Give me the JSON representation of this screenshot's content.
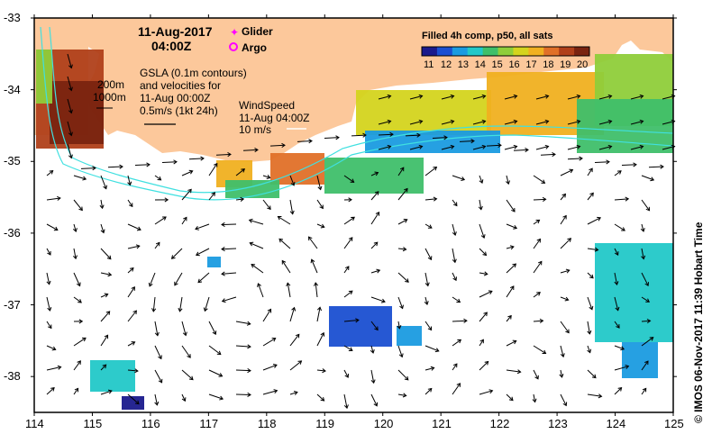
{
  "header": {
    "date": "11-Aug-2017",
    "time": "04:00Z"
  },
  "legend_markers": {
    "glider_label": "Glider",
    "argo_label": "Argo",
    "glider_color": "#ff00ff",
    "argo_color": "#ff00ff"
  },
  "colorbar": {
    "title": "Filled 4h comp, p50, all sats",
    "ticks": [
      "11",
      "12",
      "13",
      "14",
      "15",
      "16",
      "17",
      "18",
      "19",
      "20"
    ],
    "colors": [
      "#1a1a8c",
      "#1a4fd1",
      "#1a9be0",
      "#22c8c8",
      "#3fbf6a",
      "#8fce3a",
      "#d4d41e",
      "#f0b020",
      "#e07028",
      "#b0401a",
      "#7a2410"
    ]
  },
  "contours_note": {
    "label_200": "200m",
    "label_1000": "1000m"
  },
  "gsla_note": {
    "line1": "GSLA (0.1m contours)",
    "line2": "and velocities for",
    "line3": "11-Aug 00:00Z",
    "line4": "0.5m/s (1kt 24h)"
  },
  "wind_note": {
    "line1": "WindSpeed",
    "line2": "11-Aug 04:00Z",
    "line3": "10 m/s"
  },
  "axes": {
    "x_ticks": [
      "114",
      "115",
      "116",
      "117",
      "118",
      "119",
      "120",
      "121",
      "122",
      "123",
      "124",
      "125"
    ],
    "y_ticks": [
      "-33",
      "-34",
      "-35",
      "-36",
      "-37",
      "-38"
    ],
    "lon_range": [
      114,
      125
    ],
    "lat_range": [
      -38.5,
      -33
    ]
  },
  "credit": "© IMOS 06-Nov-2017 11:39 Hobart Time",
  "colors": {
    "land": "#fcc89b",
    "arrow": "#000000",
    "isobath": "#40e0e0",
    "ocean": "#ffffff"
  }
}
